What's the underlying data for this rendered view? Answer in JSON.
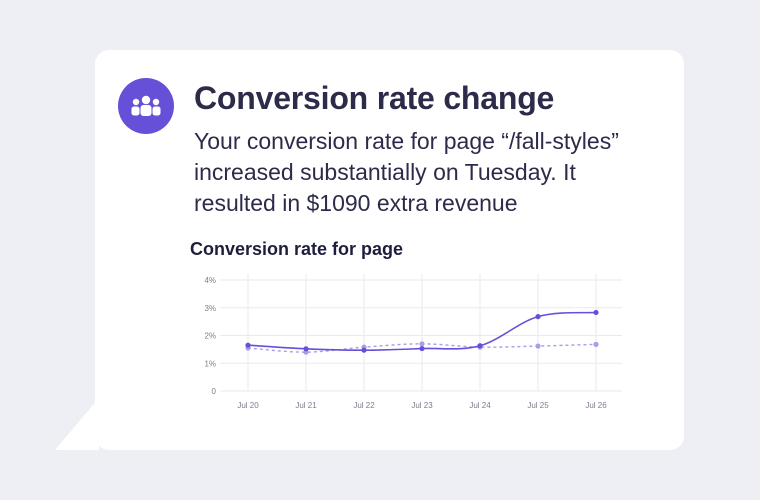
{
  "notification": {
    "icon": "people-group-icon",
    "title": "Conversion rate change",
    "message": "Your conversion rate for page “/fall-styles” increased substantially on Tuesday. It resulted in $1090 extra revenue"
  },
  "colors": {
    "background": "#eeeff4",
    "card": "#ffffff",
    "accent": "#6650d8",
    "series_current": "#6650d8",
    "series_baseline": "#a99ce8",
    "text": "#2c2c4a"
  },
  "chart_data": {
    "type": "line",
    "title": "Conversion rate for page",
    "xlabel": "",
    "ylabel": "",
    "categories": [
      "Jul 20",
      "Jul 21",
      "Jul 22",
      "Jul 23",
      "Jul 24",
      "Jul 25",
      "Jul 26"
    ],
    "series": [
      {
        "values": [
          1.65,
          1.52,
          1.47,
          1.53,
          1.63,
          2.68,
          2.83
        ],
        "style": "solid"
      },
      {
        "values": [
          1.55,
          1.4,
          1.58,
          1.7,
          1.58,
          1.62,
          1.68
        ],
        "style": "dashed"
      }
    ],
    "ylim": [
      0,
      4
    ],
    "yticks": [
      "0",
      "1%",
      "2%",
      "3%",
      "4%"
    ],
    "grid": true,
    "legend": "none"
  }
}
